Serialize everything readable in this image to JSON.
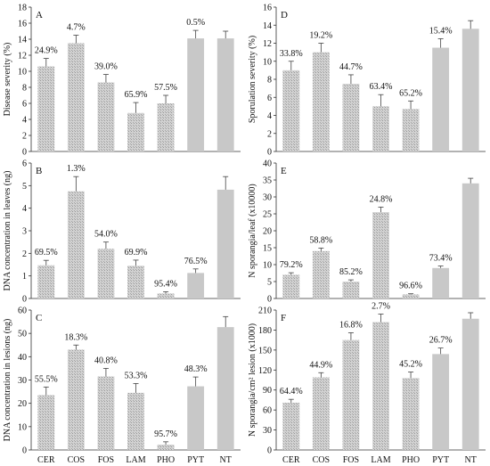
{
  "colors": {
    "bar": "#c8c8c8",
    "bar_hatch": "#9a9a9a",
    "axis": "#333333",
    "error": "#444444"
  },
  "chart_data": [
    {
      "type": "bar",
      "panel": "A",
      "categories": [
        "CER",
        "COS",
        "FOS",
        "LAM",
        "PHO",
        "PYT",
        "NT"
      ],
      "values": [
        10.6,
        13.5,
        8.6,
        4.8,
        6.0,
        14.1,
        14.1
      ],
      "errors": [
        1.0,
        1.0,
        1.0,
        1.3,
        1.0,
        1.0,
        0.9
      ],
      "hatched": [
        true,
        true,
        true,
        true,
        true,
        false,
        false
      ],
      "labels": [
        "24.9%",
        "4.7%",
        "39.0%",
        "65.9%",
        "57.5%",
        "0.5%",
        ""
      ],
      "ylabel": "Disease severity (%)",
      "ylim": [
        0,
        18
      ],
      "yticks": [
        0,
        2,
        4,
        6,
        8,
        10,
        12,
        14,
        16,
        18
      ],
      "show_xticks": false
    },
    {
      "type": "bar",
      "panel": "D",
      "categories": [
        "CER",
        "COS",
        "FOS",
        "LAM",
        "PHO",
        "PYT",
        "NT"
      ],
      "values": [
        9.0,
        11.0,
        7.5,
        5.0,
        4.7,
        11.5,
        13.6
      ],
      "errors": [
        1.0,
        1.0,
        1.0,
        1.3,
        0.9,
        1.0,
        0.9
      ],
      "hatched": [
        true,
        true,
        true,
        true,
        true,
        false,
        false
      ],
      "labels": [
        "33.8%",
        "19.2%",
        "44.7%",
        "63.4%",
        "65.2%",
        "15.4%",
        ""
      ],
      "ylabel": "Sporulation severity (%)",
      "ylim": [
        0,
        16
      ],
      "yticks": [
        0,
        2,
        4,
        6,
        8,
        10,
        12,
        14,
        16
      ],
      "show_xticks": false
    },
    {
      "type": "bar",
      "panel": "B",
      "categories": [
        "CER",
        "COS",
        "FOS",
        "LAM",
        "PHO",
        "PYT",
        "NT"
      ],
      "values": [
        1.47,
        4.75,
        2.2,
        1.45,
        0.22,
        1.13,
        4.82
      ],
      "errors": [
        0.22,
        0.65,
        0.3,
        0.25,
        0.08,
        0.18,
        0.58
      ],
      "hatched": [
        true,
        true,
        true,
        true,
        true,
        false,
        false
      ],
      "labels": [
        "69.5%",
        "1.3%",
        "54.0%",
        "69.9%",
        "95.4%",
        "76.5%",
        ""
      ],
      "ylabel": "DNA concentration in leaves (ng)",
      "ylim": [
        0,
        6
      ],
      "yticks": [
        0,
        1,
        2,
        3,
        4,
        5,
        6
      ],
      "show_xticks": false
    },
    {
      "type": "bar",
      "panel": "E",
      "categories": [
        "CER",
        "COS",
        "FOS",
        "LAM",
        "PHO",
        "PYT",
        "NT"
      ],
      "values": [
        7.0,
        14.0,
        5.0,
        25.5,
        1.2,
        9.0,
        34.0
      ],
      "errors": [
        0.6,
        0.9,
        0.5,
        1.5,
        0.2,
        0.6,
        1.5
      ],
      "hatched": [
        true,
        true,
        true,
        true,
        true,
        false,
        false
      ],
      "labels": [
        "79.2%",
        "58.8%",
        "85.2%",
        "24.8%",
        "96.6%",
        "73.4%",
        ""
      ],
      "ylabel": "N sporangia/leaf (x10000)",
      "ylim": [
        0,
        40
      ],
      "yticks": [
        0,
        5,
        10,
        15,
        20,
        25,
        30,
        35,
        40
      ],
      "show_xticks": false
    },
    {
      "type": "bar",
      "panel": "C",
      "categories": [
        "CER",
        "COS",
        "FOS",
        "LAM",
        "PHO",
        "PYT",
        "NT"
      ],
      "values": [
        23.5,
        43.0,
        31.5,
        24.5,
        2.3,
        27.3,
        52.7
      ],
      "errors": [
        3.5,
        2.0,
        3.5,
        4.0,
        1.2,
        4.0,
        4.5
      ],
      "hatched": [
        true,
        true,
        true,
        true,
        true,
        false,
        false
      ],
      "labels": [
        "55.5%",
        "18.3%",
        "40.8%",
        "53.3%",
        "95.7%",
        "48.3%",
        ""
      ],
      "ylabel": "DNA concentration in lesions (ng)",
      "ylim": [
        0,
        60
      ],
      "yticks": [
        0,
        10,
        20,
        30,
        40,
        50,
        60
      ],
      "show_xticks": true
    },
    {
      "type": "bar",
      "panel": "F",
      "categories": [
        "CER",
        "COS",
        "FOS",
        "LAM",
        "PHO",
        "PYT",
        "NT"
      ],
      "values": [
        71.0,
        109.0,
        165.0,
        192.0,
        108.0,
        144.0,
        197.0
      ],
      "errors": [
        5.0,
        7.0,
        11.0,
        12.0,
        9.0,
        9.0,
        9.0
      ],
      "hatched": [
        true,
        true,
        true,
        true,
        true,
        false,
        false
      ],
      "labels": [
        "64.4%",
        "44.9%",
        "16.8%",
        "2.7%",
        "45.2%",
        "26.7%",
        ""
      ],
      "ylabel": "N sporangia/cm² lesion (x1000)",
      "ylim": [
        0,
        210
      ],
      "yticks": [
        0,
        30,
        60,
        90,
        120,
        150,
        180,
        210
      ],
      "show_xticks": true
    }
  ]
}
